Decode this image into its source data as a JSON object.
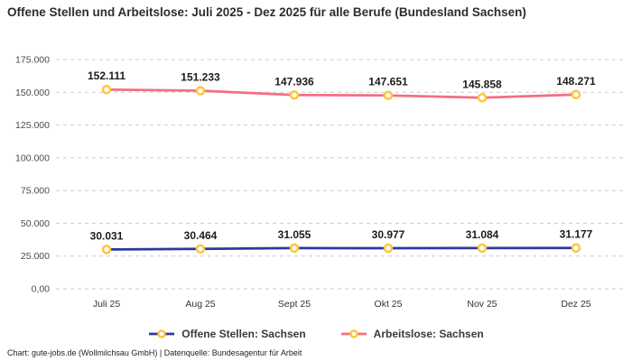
{
  "title": "Offene Stellen und Arbeitslose: Juli 2025 - Dez 2025 für alle Berufe (Bundesland Sachsen)",
  "footer": "Chart: gute-jobs.de (Wollmilchsau GmbH) | Datenquelle: Bundesagentur für Arbeit",
  "colors": {
    "offene_stellen_line": "#2b3a9b",
    "arbeitslose_line": "#f56e85",
    "marker_stroke": "#ffc53d",
    "marker_fill": "#ffffff",
    "gridline": "#cbcbcb",
    "background": "#ffffff"
  },
  "chart_data": {
    "type": "line",
    "title": "Offene Stellen und Arbeitslose: Juli 2025 - Dez 2025 für alle Berufe (Bundesland Sachsen)",
    "categories": [
      "Juli 25",
      "Aug 25",
      "Sept 25",
      "Okt 25",
      "Nov 25",
      "Dez 25"
    ],
    "series": [
      {
        "name": "Offene Stellen: Sachsen",
        "values": [
          30031,
          30464,
          31055,
          30977,
          31084,
          31177
        ],
        "labels": [
          "30.031",
          "30.464",
          "31.055",
          "30.977",
          "31.084",
          "31.177"
        ],
        "color": "#2b3a9b"
      },
      {
        "name": "Arbeitslose: Sachsen",
        "values": [
          152111,
          151233,
          147936,
          147651,
          145858,
          148271
        ],
        "labels": [
          "152.111",
          "151.233",
          "147.936",
          "147.651",
          "145.858",
          "148.271"
        ],
        "color": "#f56e85"
      }
    ],
    "marker": {
      "fill": "#ffffff",
      "stroke": "#ffc53d"
    },
    "y_ticks": [
      {
        "value": 0,
        "label": "0,00"
      },
      {
        "value": 25000,
        "label": "25.000"
      },
      {
        "value": 50000,
        "label": "50.000"
      },
      {
        "value": 75000,
        "label": "75.000"
      },
      {
        "value": 100000,
        "label": "100.000"
      },
      {
        "value": 125000,
        "label": "125.000"
      },
      {
        "value": 150000,
        "label": "150.000"
      },
      {
        "value": 175000,
        "label": "175.000"
      }
    ],
    "ylim": [
      0,
      175000
    ],
    "grid": true,
    "grid_style": "dashed",
    "legend_position": "bottom",
    "xlabel": "",
    "ylabel": ""
  }
}
